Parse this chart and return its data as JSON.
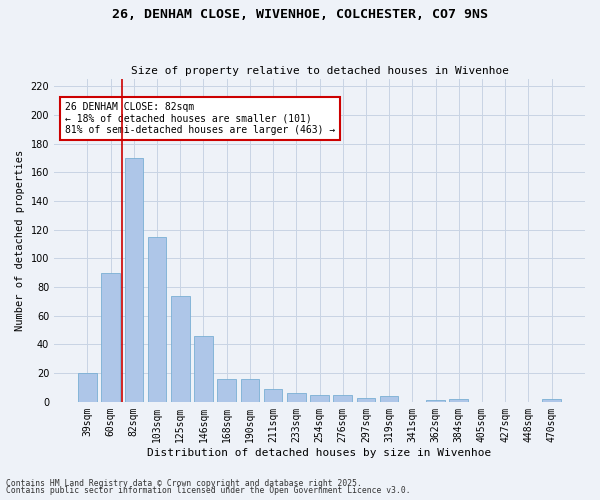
{
  "title_line1": "26, DENHAM CLOSE, WIVENHOE, COLCHESTER, CO7 9NS",
  "title_line2": "Size of property relative to detached houses in Wivenhoe",
  "xlabel": "Distribution of detached houses by size in Wivenhoe",
  "ylabel": "Number of detached properties",
  "categories": [
    "39sqm",
    "60sqm",
    "82sqm",
    "103sqm",
    "125sqm",
    "146sqm",
    "168sqm",
    "190sqm",
    "211sqm",
    "233sqm",
    "254sqm",
    "276sqm",
    "297sqm",
    "319sqm",
    "341sqm",
    "362sqm",
    "384sqm",
    "405sqm",
    "427sqm",
    "448sqm",
    "470sqm"
  ],
  "values": [
    20,
    90,
    170,
    115,
    74,
    46,
    16,
    16,
    9,
    6,
    5,
    5,
    3,
    4,
    0,
    1,
    2,
    0,
    0,
    0,
    2
  ],
  "bar_color": "#aec6e8",
  "bar_edge_color": "#7aafd4",
  "highlight_bar_index": 2,
  "highlight_line_color": "#cc0000",
  "annotation_text": "26 DENHAM CLOSE: 82sqm\n← 18% of detached houses are smaller (101)\n81% of semi-detached houses are larger (463) →",
  "annotation_box_color": "#ffffff",
  "annotation_box_edge_color": "#cc0000",
  "ylim": [
    0,
    225
  ],
  "yticks": [
    0,
    20,
    40,
    60,
    80,
    100,
    120,
    140,
    160,
    180,
    200,
    220
  ],
  "footer_line1": "Contains HM Land Registry data © Crown copyright and database right 2025.",
  "footer_line2": "Contains public sector information licensed under the Open Government Licence v3.0.",
  "background_color": "#eef2f8",
  "grid_color": "#c8d4e4"
}
